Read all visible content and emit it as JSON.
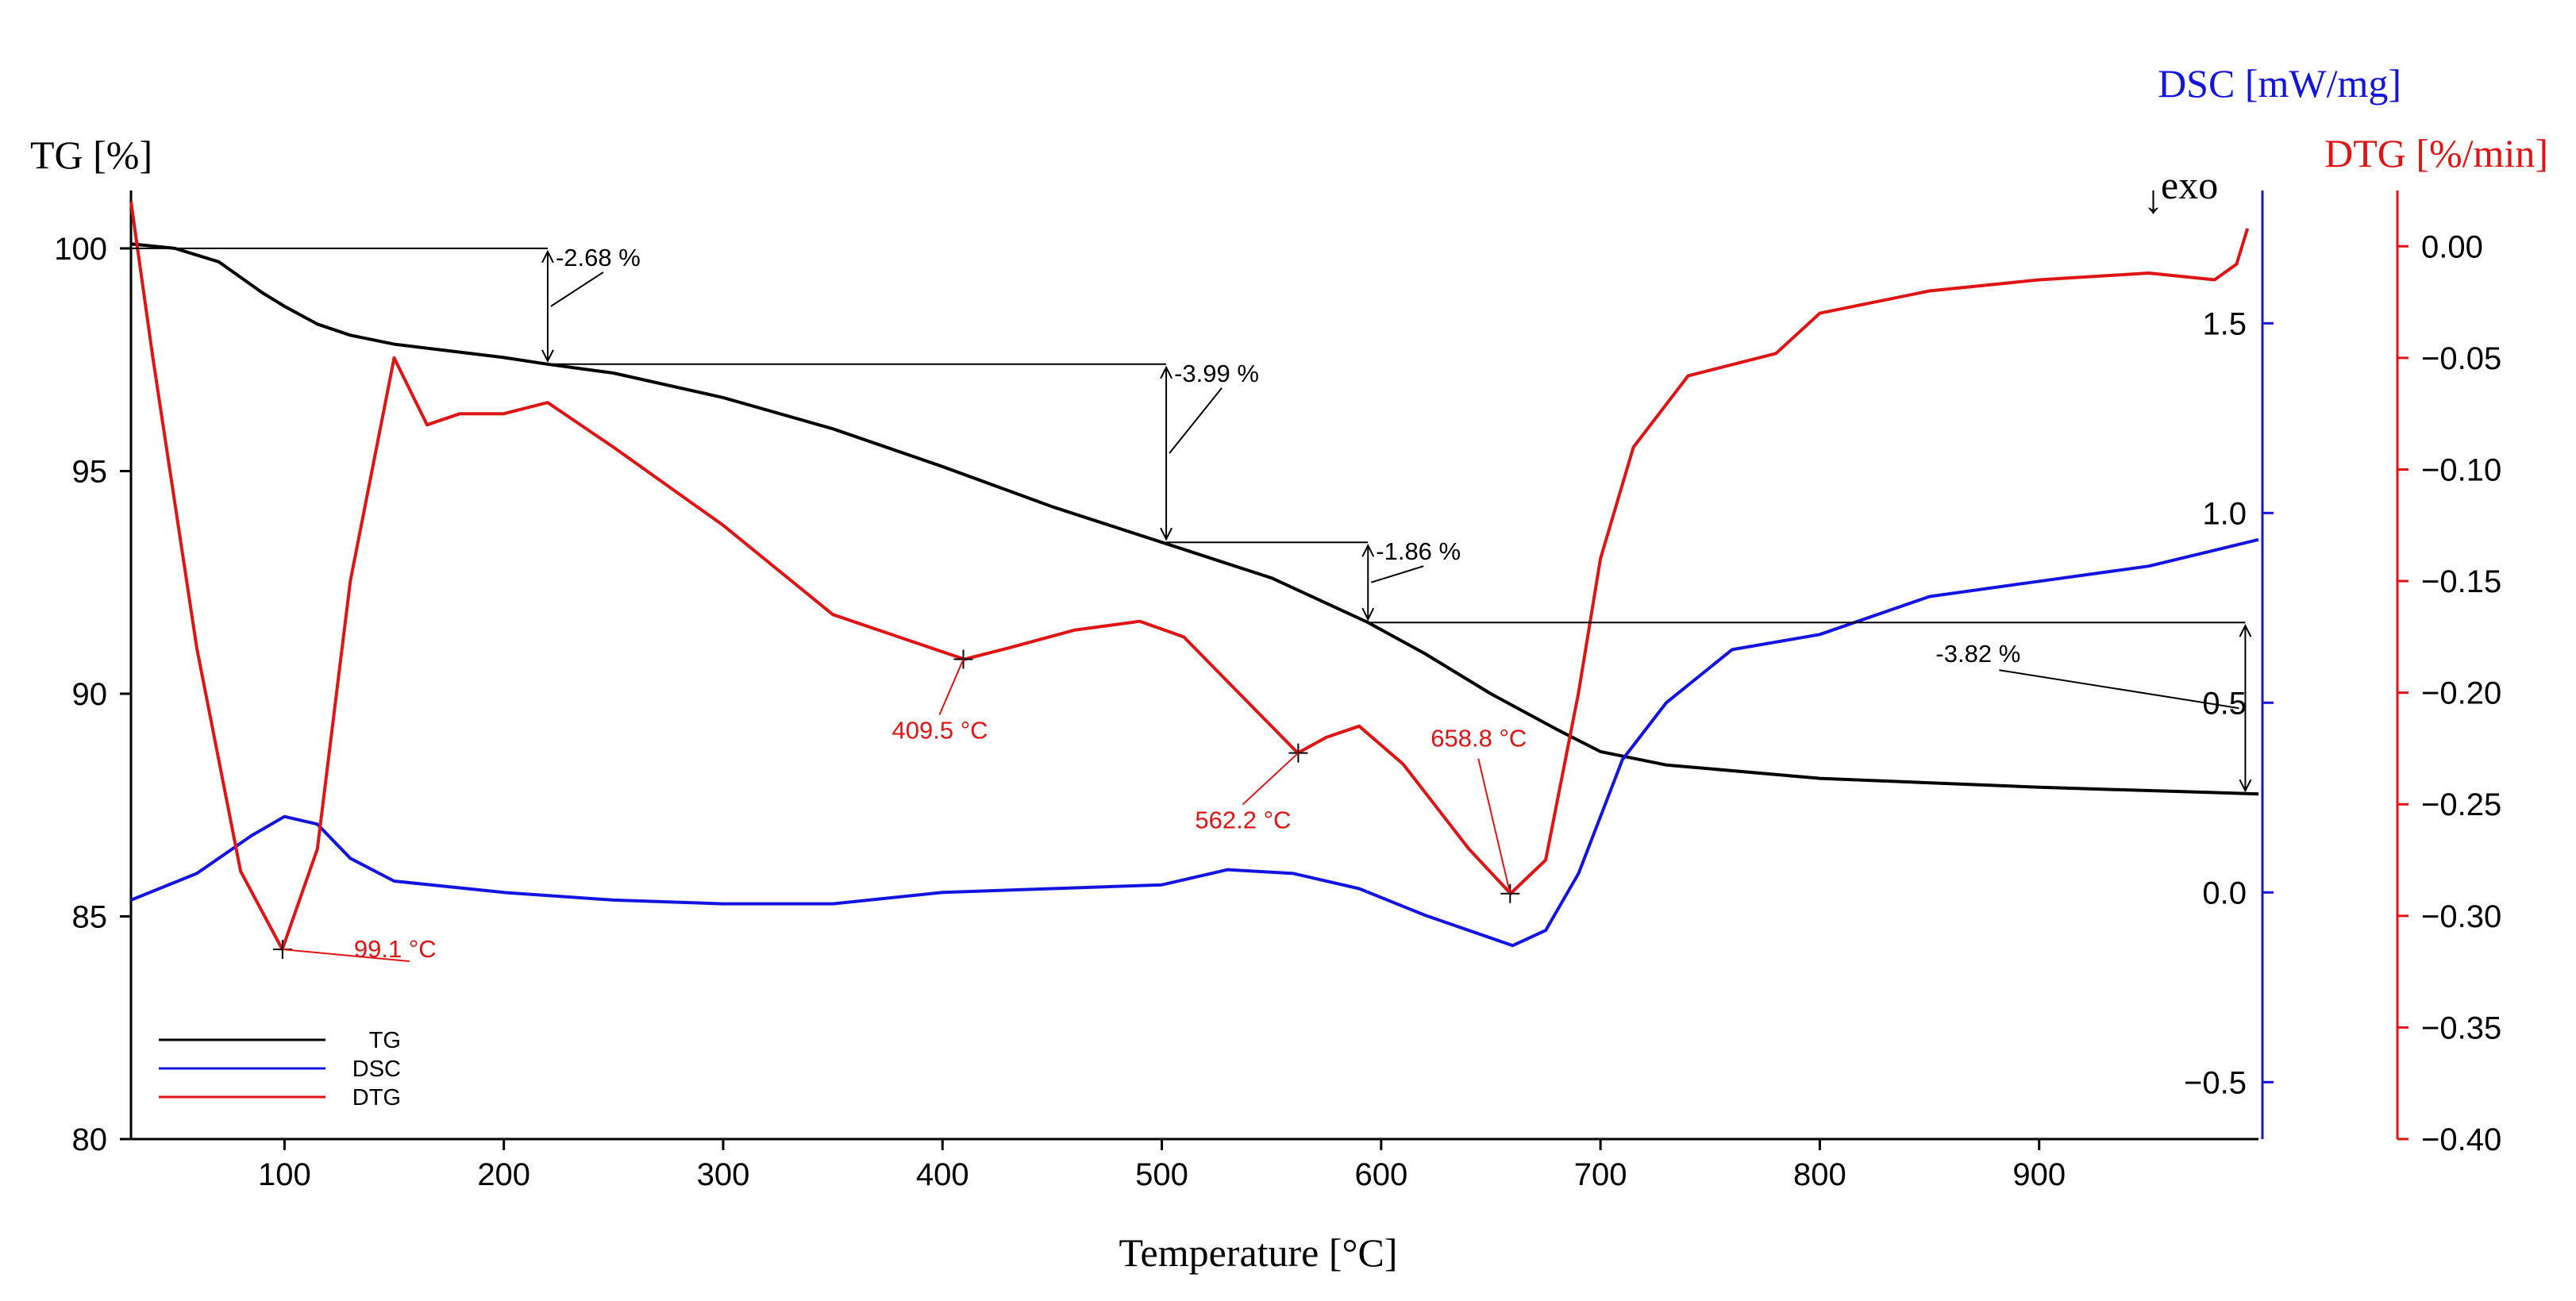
{
  "chart_data": {
    "type": "line",
    "xlabel": "Temperature [°C]",
    "xlim": [
      30,
      1000
    ],
    "xticks": [
      100,
      200,
      300,
      400,
      500,
      600,
      700,
      800,
      900
    ],
    "axes": {
      "tg": {
        "label": "TG [%]",
        "lim": [
          80,
          101.3
        ],
        "ticks": [
          80,
          85,
          90,
          95,
          100
        ],
        "color": "#000000"
      },
      "dsc": {
        "label": "DSC [mW/mg]",
        "lim": [
          -0.65,
          1.85
        ],
        "ticks": [
          -0.5,
          0.0,
          0.5,
          1.0,
          1.5
        ],
        "color": "#1414e0"
      },
      "dtg": {
        "label": "DTG [%/min]",
        "lim": [
          -0.4,
          0.025
        ],
        "ticks": [
          -0.4,
          -0.35,
          -0.3,
          -0.25,
          -0.2,
          -0.15,
          -0.1,
          -0.05,
          0.0
        ],
        "color": "#e01414"
      }
    },
    "exo_label": "exo",
    "series": [
      {
        "name": "TG",
        "axis": "tg",
        "color": "#000000",
        "points": [
          [
            30,
            100.1
          ],
          [
            50,
            100.0
          ],
          [
            70,
            99.7
          ],
          [
            90,
            99.0
          ],
          [
            100,
            98.7
          ],
          [
            115,
            98.3
          ],
          [
            130,
            98.05
          ],
          [
            150,
            97.85
          ],
          [
            175,
            97.7
          ],
          [
            200,
            97.55
          ],
          [
            220,
            97.4
          ],
          [
            250,
            97.2
          ],
          [
            300,
            96.65
          ],
          [
            350,
            95.95
          ],
          [
            400,
            95.1
          ],
          [
            450,
            94.2
          ],
          [
            500,
            93.4
          ],
          [
            550,
            92.6
          ],
          [
            594,
            91.6
          ],
          [
            620,
            90.9
          ],
          [
            650,
            90.0
          ],
          [
            680,
            89.2
          ],
          [
            700,
            88.7
          ],
          [
            730,
            88.4
          ],
          [
            800,
            88.1
          ],
          [
            900,
            87.9
          ],
          [
            1000,
            87.75
          ]
        ]
      },
      {
        "name": "DSC",
        "axis": "dsc",
        "color": "#1414e0",
        "points": [
          [
            30,
            -0.02
          ],
          [
            60,
            0.05
          ],
          [
            85,
            0.15
          ],
          [
            100,
            0.2
          ],
          [
            115,
            0.18
          ],
          [
            130,
            0.09
          ],
          [
            150,
            0.03
          ],
          [
            200,
            0.0
          ],
          [
            250,
            -0.02
          ],
          [
            300,
            -0.03
          ],
          [
            350,
            -0.03
          ],
          [
            400,
            0.0
          ],
          [
            450,
            0.01
          ],
          [
            500,
            0.02
          ],
          [
            530,
            0.06
          ],
          [
            560,
            0.05
          ],
          [
            590,
            0.01
          ],
          [
            620,
            -0.06
          ],
          [
            650,
            -0.12
          ],
          [
            660,
            -0.14
          ],
          [
            675,
            -0.1
          ],
          [
            690,
            0.05
          ],
          [
            710,
            0.35
          ],
          [
            730,
            0.5
          ],
          [
            760,
            0.64
          ],
          [
            800,
            0.68
          ],
          [
            850,
            0.78
          ],
          [
            900,
            0.82
          ],
          [
            950,
            0.86
          ],
          [
            1000,
            0.93
          ]
        ]
      },
      {
        "name": "DTG",
        "axis": "dtg",
        "color": "#e01414",
        "points": [
          [
            30,
            0.02
          ],
          [
            40,
            -0.05
          ],
          [
            60,
            -0.18
          ],
          [
            80,
            -0.28
          ],
          [
            99,
            -0.315
          ],
          [
            115,
            -0.27
          ],
          [
            130,
            -0.15
          ],
          [
            150,
            -0.05
          ],
          [
            165,
            -0.08
          ],
          [
            180,
            -0.075
          ],
          [
            200,
            -0.075
          ],
          [
            220,
            -0.07
          ],
          [
            250,
            -0.09
          ],
          [
            300,
            -0.125
          ],
          [
            350,
            -0.165
          ],
          [
            380,
            -0.175
          ],
          [
            410,
            -0.185
          ],
          [
            430,
            -0.18
          ],
          [
            460,
            -0.172
          ],
          [
            490,
            -0.168
          ],
          [
            510,
            -0.175
          ],
          [
            530,
            -0.195
          ],
          [
            562,
            -0.227
          ],
          [
            575,
            -0.22
          ],
          [
            590,
            -0.215
          ],
          [
            610,
            -0.232
          ],
          [
            640,
            -0.27
          ],
          [
            659,
            -0.29
          ],
          [
            675,
            -0.275
          ],
          [
            690,
            -0.2
          ],
          [
            700,
            -0.14
          ],
          [
            715,
            -0.09
          ],
          [
            740,
            -0.058
          ],
          [
            780,
            -0.048
          ],
          [
            800,
            -0.03
          ],
          [
            850,
            -0.02
          ],
          [
            900,
            -0.015
          ],
          [
            950,
            -0.012
          ],
          [
            980,
            -0.015
          ],
          [
            990,
            -0.008
          ],
          [
            995,
            0.008
          ]
        ]
      }
    ],
    "annotations": [
      {
        "text": "-2.68 %",
        "x": 220,
        "from": 100,
        "to": 97.4
      },
      {
        "text": "-3.99 %",
        "x": 502,
        "from": 97.4,
        "to": 93.4
      },
      {
        "text": "-1.86 %",
        "x": 594,
        "from": 93.4,
        "to": 91.6
      },
      {
        "text": "-3.82 %",
        "x": 994,
        "from": 91.6,
        "to": 87.75
      }
    ],
    "peaks": [
      {
        "text": "99.1 °C",
        "x": 99.1,
        "y": -0.315
      },
      {
        "text": "409.5 °C",
        "x": 409.5,
        "y": -0.185
      },
      {
        "text": "562.2 °C",
        "x": 562.2,
        "y": -0.227
      },
      {
        "text": "658.8 °C",
        "x": 658.8,
        "y": -0.29
      }
    ],
    "legend": {
      "position": "bottom-left",
      "entries": [
        "TG",
        "DSC",
        "DTG"
      ]
    }
  }
}
